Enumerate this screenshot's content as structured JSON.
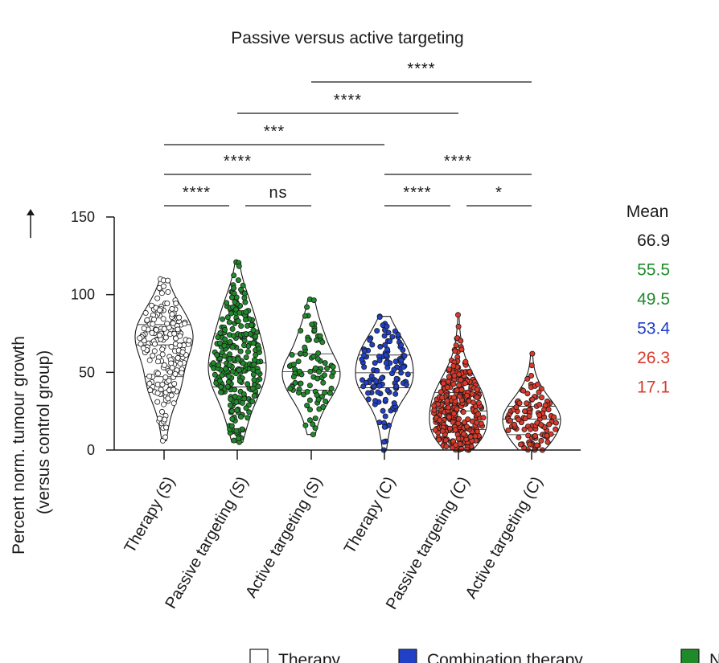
{
  "chart_data": {
    "type": "violin",
    "title": "Passive versus active targeting",
    "ylabel_line1": "Percent norm. tumour growth",
    "ylabel_line2": "(versus control group)",
    "ylim": [
      0,
      150
    ],
    "yticks": [
      "0",
      "50",
      "100",
      "150"
    ],
    "categories": [
      "Therapy (S)",
      "Passive targeting (S)",
      "Active targeting (S)",
      "Therapy (C)",
      "Passive targeting (C)",
      "Active targeting (C)"
    ],
    "series": [
      {
        "category": "Therapy (S)",
        "mean": 66.9,
        "min": 6,
        "max": 110,
        "n": 200,
        "color": "#ffffff",
        "group": "Therapy"
      },
      {
        "category": "Passive targeting (S)",
        "mean": 55.5,
        "min": 5,
        "max": 121,
        "n": 270,
        "color": "#1f8a2a",
        "group": "Nano"
      },
      {
        "category": "Active targeting (S)",
        "mean": 49.5,
        "min": 10,
        "max": 97,
        "n": 90,
        "color": "#1f8a2a",
        "group": "Nano"
      },
      {
        "category": "Therapy (C)",
        "mean": 53.4,
        "min": 0,
        "max": 86,
        "n": 120,
        "color": "#2040c8",
        "group": "Combination therapy"
      },
      {
        "category": "Passive targeting (C)",
        "mean": 26.3,
        "min": 0,
        "max": 87,
        "n": 330,
        "color": "#d93a2b",
        "group": "Nano"
      },
      {
        "category": "Active targeting (C)",
        "mean": 17.1,
        "min": 0,
        "max": 62,
        "n": 110,
        "color": "#d93a2b",
        "group": "Nano"
      }
    ],
    "significance": [
      {
        "from": 0,
        "to": 1,
        "label": "****"
      },
      {
        "from": 1,
        "to": 2,
        "label": "ns"
      },
      {
        "from": 3,
        "to": 4,
        "label": "****"
      },
      {
        "from": 4,
        "to": 5,
        "label": "*"
      },
      {
        "from": 0,
        "to": 2,
        "label": "****"
      },
      {
        "from": 3,
        "to": 5,
        "label": "****"
      },
      {
        "from": 0,
        "to": 3,
        "label": "***"
      },
      {
        "from": 1,
        "to": 4,
        "label": "****"
      },
      {
        "from": 2,
        "to": 5,
        "label": "****"
      }
    ],
    "mean_header": "Mean",
    "means_text": [
      {
        "text": "66.9",
        "color": "#1a1a1a"
      },
      {
        "text": "55.5",
        "color": "#1f8a2a"
      },
      {
        "text": "49.5",
        "color": "#1f8a2a"
      },
      {
        "text": "53.4",
        "color": "#2040c8"
      },
      {
        "text": "26.3",
        "color": "#d93a2b"
      },
      {
        "text": "17.1",
        "color": "#d93a2b"
      }
    ],
    "legend": [
      {
        "label": "Therapy",
        "color": "#ffffff"
      },
      {
        "label": "Combination therapy",
        "color": "#2040c8"
      },
      {
        "label": "N",
        "color": "#1f8a2a"
      }
    ]
  }
}
